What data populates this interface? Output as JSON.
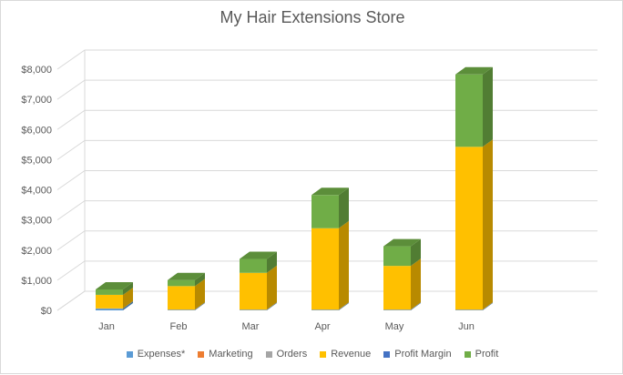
{
  "chart_data": {
    "type": "bar",
    "stacked": true,
    "style": "3d-column",
    "title": "My Hair Extensions Store",
    "xlabel": "",
    "ylabel": "",
    "categories": [
      "Jan",
      "Feb",
      "Mar",
      "Apr",
      "May",
      "Jun"
    ],
    "ylim": [
      0,
      8000
    ],
    "yticks": [
      0,
      1000,
      2000,
      3000,
      4000,
      5000,
      6000,
      7000,
      8000
    ],
    "ytick_labels": [
      "$0",
      "$1,000",
      "$2,000",
      "$3,000",
      "$4,000",
      "$5,000",
      "$6,000",
      "$7,000",
      "$8,000"
    ],
    "grid": true,
    "legend_position": "bottom",
    "series": [
      {
        "name": "Expenses*",
        "color": "#5b9bd5",
        "values": [
          60,
          20,
          20,
          20,
          20,
          20
        ]
      },
      {
        "name": "Marketing",
        "color": "#ed7d31",
        "values": [
          0,
          0,
          0,
          0,
          0,
          0
        ]
      },
      {
        "name": "Orders",
        "color": "#a5a5a5",
        "values": [
          5,
          5,
          5,
          5,
          5,
          5
        ]
      },
      {
        "name": "Revenue",
        "color": "#ffc000",
        "values": [
          450,
          780,
          1220,
          2700,
          1450,
          5400
        ]
      },
      {
        "name": "Profit Margin",
        "color": "#4472c4",
        "values": [
          0,
          0,
          0,
          0,
          0,
          0
        ]
      },
      {
        "name": "Profit",
        "color": "#70ad47",
        "values": [
          180,
          200,
          460,
          1100,
          650,
          2400
        ]
      }
    ]
  }
}
